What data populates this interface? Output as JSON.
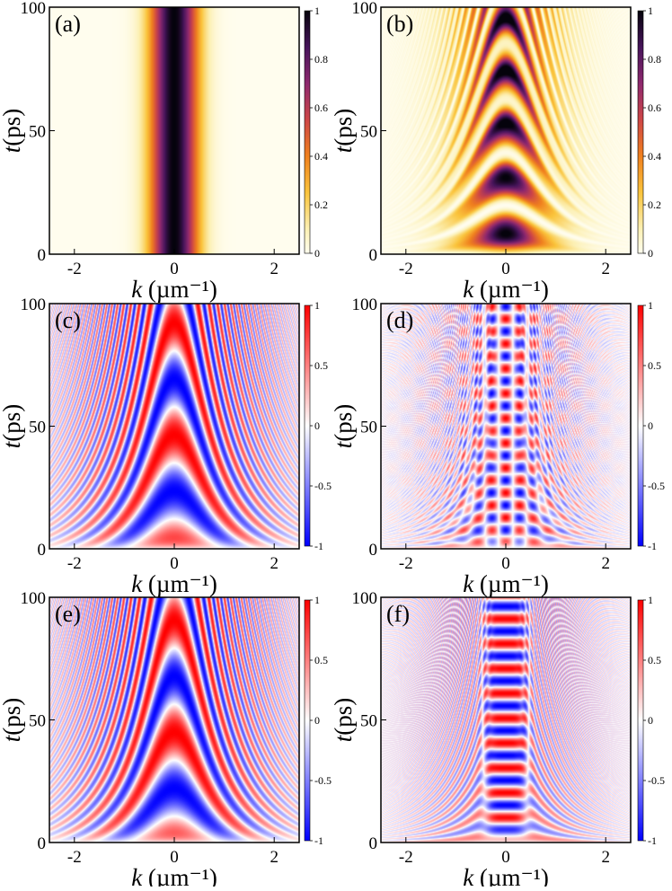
{
  "chart_data": [
    {
      "type": "heatmap",
      "panel_label": "(a)",
      "xlabel": {
        "var": "k",
        "unit": "(µm⁻¹)"
      },
      "ylabel": {
        "var": "t",
        "unit": "(ps)"
      },
      "xlim": [
        -2.5,
        2.5
      ],
      "ylim": [
        0,
        100
      ],
      "xticks": [
        "-2",
        "0",
        "2"
      ],
      "yticks": [
        "0",
        "50",
        "100"
      ],
      "colormap": "inferno-reversed",
      "colorbar": {
        "range": [
          0,
          1
        ],
        "ticks": [
          "0",
          "0.2",
          "0.4",
          "0.6",
          "0.8",
          "1"
        ]
      },
      "pattern": "stationary Gaussian stripe centered at k=0, width ~0.7 µm⁻¹, constant in t"
    },
    {
      "type": "heatmap",
      "panel_label": "(b)",
      "xlabel": {
        "var": "k",
        "unit": "(µm⁻¹)"
      },
      "ylabel": {
        "var": "t",
        "unit": "(ps)"
      },
      "xlim": [
        -2.5,
        2.5
      ],
      "ylim": [
        0,
        100
      ],
      "xticks": [
        "-2",
        "0",
        "2"
      ],
      "yticks": [
        "0",
        "50",
        "100"
      ],
      "colormap": "inferno-reversed",
      "colorbar": {
        "range": [
          0,
          1
        ],
        "ticks": [
          "0",
          "0.2",
          "0.4",
          "0.6",
          "0.8",
          "1"
        ]
      },
      "pattern": "Rabi-like oscillating bands in t, central bright band ~|k|<0.6, fringes narrowing at large |k|"
    },
    {
      "type": "heatmap",
      "panel_label": "(c)",
      "xlabel": {
        "var": "k",
        "unit": "(µm⁻¹)"
      },
      "ylabel": {
        "var": "t",
        "unit": "(ps)"
      },
      "xlim": [
        -2.5,
        2.5
      ],
      "ylim": [
        0,
        100
      ],
      "xticks": [
        "-2",
        "0",
        "2"
      ],
      "yticks": [
        "0",
        "50",
        "100"
      ],
      "colormap": "bwr",
      "colorbar": {
        "range": [
          -1,
          1
        ],
        "ticks": [
          "-1",
          "-0.5",
          "0",
          "0.5",
          "1"
        ]
      },
      "pattern": "parabolic red/blue fringes opening upward, vertex near k=0, t~5 ps"
    },
    {
      "type": "heatmap",
      "panel_label": "(d)",
      "xlabel": {
        "var": "k",
        "unit": "(µm⁻¹)"
      },
      "ylabel": {
        "var": "t",
        "unit": "(ps)"
      },
      "xlim": [
        -2.5,
        2.5
      ],
      "ylim": [
        0,
        100
      ],
      "xticks": [
        "-2",
        "0",
        "2"
      ],
      "yticks": [
        "0",
        "50",
        "100"
      ],
      "colormap": "bwr",
      "colorbar": {
        "range": [
          -1,
          1
        ],
        "ticks": [
          "-1",
          "-0.5",
          "0",
          "0.5",
          "1"
        ]
      },
      "pattern": "checkerboard oscillations in central region with fine diagonal fringes outside"
    },
    {
      "type": "heatmap",
      "panel_label": "(e)",
      "xlabel": {
        "var": "k",
        "unit": "(µm⁻¹)"
      },
      "ylabel": {
        "var": "t",
        "unit": "(ps)"
      },
      "xlim": [
        -2.5,
        2.5
      ],
      "ylim": [
        0,
        100
      ],
      "xticks": [
        "-2",
        "0",
        "2"
      ],
      "yticks": [
        "0",
        "50",
        "100"
      ],
      "colormap": "bwr",
      "colorbar": {
        "range": [
          -1,
          1
        ],
        "ticks": [
          "-1",
          "-0.5",
          "0",
          "0.5",
          "1"
        ]
      },
      "pattern": "parabolic red/blue fringes, similar to (c)"
    },
    {
      "type": "heatmap",
      "panel_label": "(f)",
      "xlabel": {
        "var": "k",
        "unit": "(µm⁻¹)"
      },
      "ylabel": {
        "var": "t",
        "unit": "(ps)"
      },
      "xlim": [
        -2.5,
        2.5
      ],
      "ylim": [
        0,
        100
      ],
      "xticks": [
        "-2",
        "0",
        "2"
      ],
      "yticks": [
        "0",
        "50",
        "100"
      ],
      "colormap": "bwr",
      "colorbar": {
        "range": [
          -1,
          1
        ],
        "ticks": [
          "-1",
          "-0.5",
          "0",
          "0.5",
          "1"
        ]
      },
      "pattern": "horizontal red/blue bands in central column |k|<0.5 with diagonal fringes outside"
    }
  ]
}
